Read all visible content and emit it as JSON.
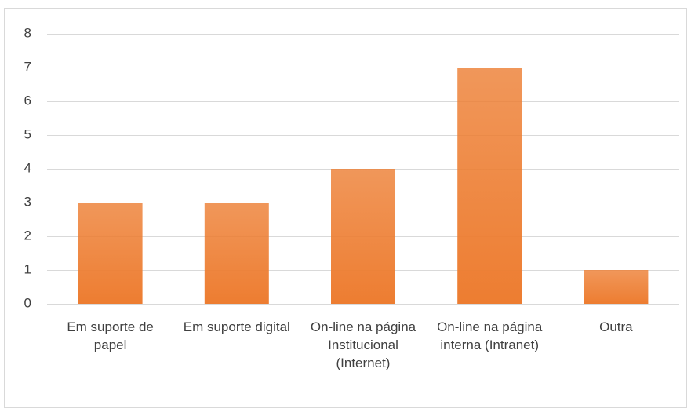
{
  "chart_data": {
    "type": "bar",
    "categories": [
      "Em suporte de papel",
      "Em suporte digital",
      "On-line na página Institucional (Internet)",
      "On-line na página interna (Intranet)",
      "Outra"
    ],
    "values": [
      3,
      3,
      4,
      7,
      1
    ],
    "color": "#ed7d31",
    "ylim": [
      0,
      8
    ],
    "yticks": [
      0,
      1,
      2,
      3,
      4,
      5,
      6,
      7,
      8
    ],
    "grid": true
  }
}
